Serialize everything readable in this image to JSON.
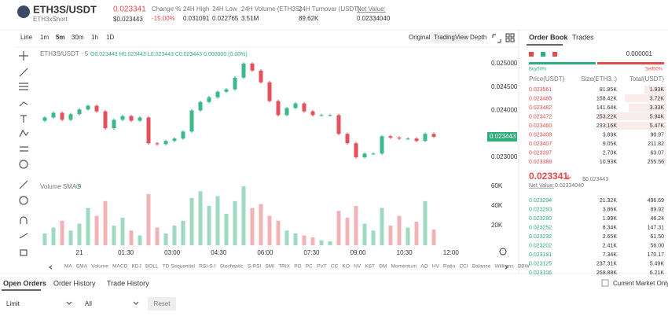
{
  "header": {
    "pair": "ETH3S/USDT",
    "name": "ETH3xShort",
    "last_price": "0.023341",
    "last_usd": "$0.023443",
    "stats": [
      {
        "label": "Change %",
        "value": "-15.00%"
      },
      {
        "label": "24H High",
        "value": "0.031091"
      },
      {
        "label": "24H Low",
        "value": "0.022765"
      },
      {
        "label": "24H Volume (ETH3S)",
        "value": "3.51M"
      },
      {
        "label": "24H Turnover (USDT)",
        "value": "89.62K"
      },
      {
        "label": "Net Value:",
        "value": "0.02334040"
      }
    ]
  },
  "toolbar": {
    "intervals": [
      "Line",
      "1m",
      "5m",
      "30m",
      "1h",
      "1D"
    ],
    "views": [
      "Original",
      "TradingView",
      "Depth"
    ]
  },
  "chart": {
    "type": "candlestick",
    "symbol": "ETH3S/USDT · 5",
    "ohlc_legend": "O0.023443 H0.023443 L0.023443 C0.023443 0.000000 (0.00%)",
    "volume_label": "Volume SMA 9",
    "volume_value": "0",
    "last_price_tag": "0.023443",
    "open": [
      0.02378,
      0.02385,
      0.02395,
      0.0238,
      0.02392,
      0.02402,
      0.0241,
      0.02398,
      0.02362,
      0.0238,
      0.02388,
      0.02378,
      0.02385,
      0.0233,
      0.02328,
      0.02335,
      0.0234,
      0.02355,
      0.024,
      0.02418,
      0.02428,
      0.0244,
      0.02445,
      0.0247,
      0.025,
      0.02485,
      0.0246,
      0.0242,
      0.0239,
      0.02405,
      0.02415,
      0.02398,
      0.0239,
      0.0239,
      0.0239,
      0.0235,
      0.0233,
      0.023,
      0.02308,
      0.02308,
      0.02345,
      0.02342,
      0.0234,
      0.0234,
      0.02335,
      0.0235
    ],
    "high": [
      0.02388,
      0.02398,
      0.02398,
      0.02395,
      0.02405,
      0.02413,
      0.02413,
      0.02401,
      0.02383,
      0.02391,
      0.02391,
      0.02388,
      0.02388,
      0.02333,
      0.02338,
      0.02343,
      0.02358,
      0.02403,
      0.02421,
      0.02431,
      0.02443,
      0.02448,
      0.02473,
      0.02503,
      0.02503,
      0.02488,
      0.02463,
      0.02423,
      0.02408,
      0.02418,
      0.02418,
      0.02401,
      0.02393,
      0.02393,
      0.02393,
      0.02353,
      0.02333,
      0.02311,
      0.02311,
      0.02348,
      0.02348,
      0.02345,
      0.02343,
      0.02343,
      0.02353,
      0.02353
    ],
    "low": [
      0.02375,
      0.02382,
      0.02377,
      0.02377,
      0.02389,
      0.02399,
      0.02395,
      0.02359,
      0.02359,
      0.02377,
      0.02375,
      0.02375,
      0.02327,
      0.02325,
      0.02325,
      0.02332,
      0.02337,
      0.02352,
      0.02397,
      0.02415,
      0.02425,
      0.02437,
      0.02442,
      0.02467,
      0.02482,
      0.02457,
      0.02417,
      0.02387,
      0.02387,
      0.02402,
      0.02395,
      0.02387,
      0.02387,
      0.02387,
      0.02347,
      0.02327,
      0.02297,
      0.02297,
      0.02305,
      0.02305,
      0.02339,
      0.02337,
      0.02337,
      0.02332,
      0.02332,
      0.02341
    ],
    "close": [
      0.02385,
      0.02395,
      0.0238,
      0.02392,
      0.02402,
      0.0241,
      0.02398,
      0.02362,
      0.0238,
      0.02388,
      0.02378,
      0.02385,
      0.0233,
      0.02328,
      0.02335,
      0.0234,
      0.02355,
      0.024,
      0.02418,
      0.02428,
      0.0244,
      0.02445,
      0.0247,
      0.025,
      0.02485,
      0.0246,
      0.0242,
      0.0239,
      0.02405,
      0.02415,
      0.02398,
      0.0239,
      0.0239,
      0.0239,
      0.0235,
      0.0233,
      0.023,
      0.02308,
      0.02308,
      0.02345,
      0.02342,
      0.0234,
      0.0234,
      0.02335,
      0.0235,
      0.02344
    ],
    "volume": [
      12000,
      18000,
      25000,
      15000,
      22000,
      38000,
      30000,
      45000,
      20000,
      28000,
      15000,
      10000,
      52000,
      18000,
      12000,
      20000,
      25000,
      48000,
      55000,
      40000,
      50000,
      32000,
      45000,
      60000,
      38000,
      42000,
      30000,
      25000,
      15000,
      12000,
      10000,
      8000,
      5000,
      4000,
      35000,
      28000,
      40000,
      22000,
      15000,
      38000,
      20000,
      30000,
      18000,
      24000,
      45000,
      16000
    ],
    "ylim": [
      0.02265,
      0.025333
    ],
    "yticks": [
      {
        "value": 0.025,
        "label": "0.025000"
      },
      {
        "value": 0.0245,
        "label": "0.024500"
      },
      {
        "value": 0.024,
        "label": "0.024000"
      },
      {
        "value": 0.023,
        "label": "0.023000"
      }
    ],
    "vlim": [
      0,
      72000
    ],
    "vticks": [
      {
        "value": 60000,
        "label": "60K"
      },
      {
        "value": 40000,
        "label": "40K"
      },
      {
        "value": 20000,
        "label": "20K"
      }
    ],
    "time_labels": [
      "21",
      "01:30",
      "03:00",
      "04:30",
      "06:00",
      "07:30",
      "09:00",
      "10:30",
      "12:00"
    ]
  },
  "indicators": [
    "MA",
    "EMA",
    "Volume",
    "MACD",
    "KDJ",
    "BOLL",
    "TD Sequential",
    "RSI-S-I",
    "Stochastic",
    "S-RSI",
    "SMI",
    "TRIX",
    "PO",
    "PC",
    "PVT",
    "CC",
    "KO",
    "NV",
    "KST",
    "DM",
    "Momentum",
    "AO",
    "HV",
    "Ratio",
    "CCI",
    "Balance",
    "Williams",
    "BBW"
  ],
  "order_book": {
    "tabs": [
      "Order Book",
      "Trades"
    ],
    "precision": "0.000001",
    "buy_ratio": "Buy50%",
    "sell_ratio": "Sell50%",
    "columns": [
      "Price(USDT)",
      "Size(ETH3..)",
      "Total(USDT)"
    ],
    "asks": [
      [
        "0.023561",
        "81.95K",
        "1.93K"
      ],
      [
        "0.023485",
        "158.42K",
        "3.72K"
      ],
      [
        "0.023482",
        "141.64K",
        "3.33K"
      ],
      [
        "0.023472",
        "253.22K",
        "5.94K"
      ],
      [
        "0.023460",
        "233.16K",
        "5.47K"
      ],
      [
        "0.023408",
        "3.89K",
        "90.97"
      ],
      [
        "0.023407",
        "9.05K",
        "211.82"
      ],
      [
        "0.023397",
        "2.70K",
        "63.07"
      ],
      [
        "0.023388",
        "10.93K",
        "255.56"
      ]
    ],
    "mid_price": "0.023341",
    "mid_usd": "$0.023443",
    "net_value_label": "Net Value:",
    "net_value": "0.02334040",
    "bids": [
      [
        "0.023294",
        "21.32K",
        "496.69"
      ],
      [
        "0.023293",
        "3.86K",
        "89.92"
      ],
      [
        "0.023280",
        "1.99K",
        "46.24"
      ],
      [
        "0.023252",
        "6.34K",
        "147.31"
      ],
      [
        "0.023232",
        "2.65K",
        "61.50"
      ],
      [
        "0.023202",
        "2.41K",
        "56.00"
      ],
      [
        "0.023181",
        "7.34K",
        "170.17"
      ],
      [
        "0.023125",
        "237.31K",
        "5.49K"
      ],
      [
        "0.023106",
        "268.88K",
        "6.21K"
      ]
    ]
  },
  "bottom": {
    "tabs": [
      "Open Orders",
      "Order History",
      "Trade History"
    ],
    "filter": "Current Market Only",
    "order_type": "Limit",
    "side": "All",
    "reset": "Reset"
  }
}
